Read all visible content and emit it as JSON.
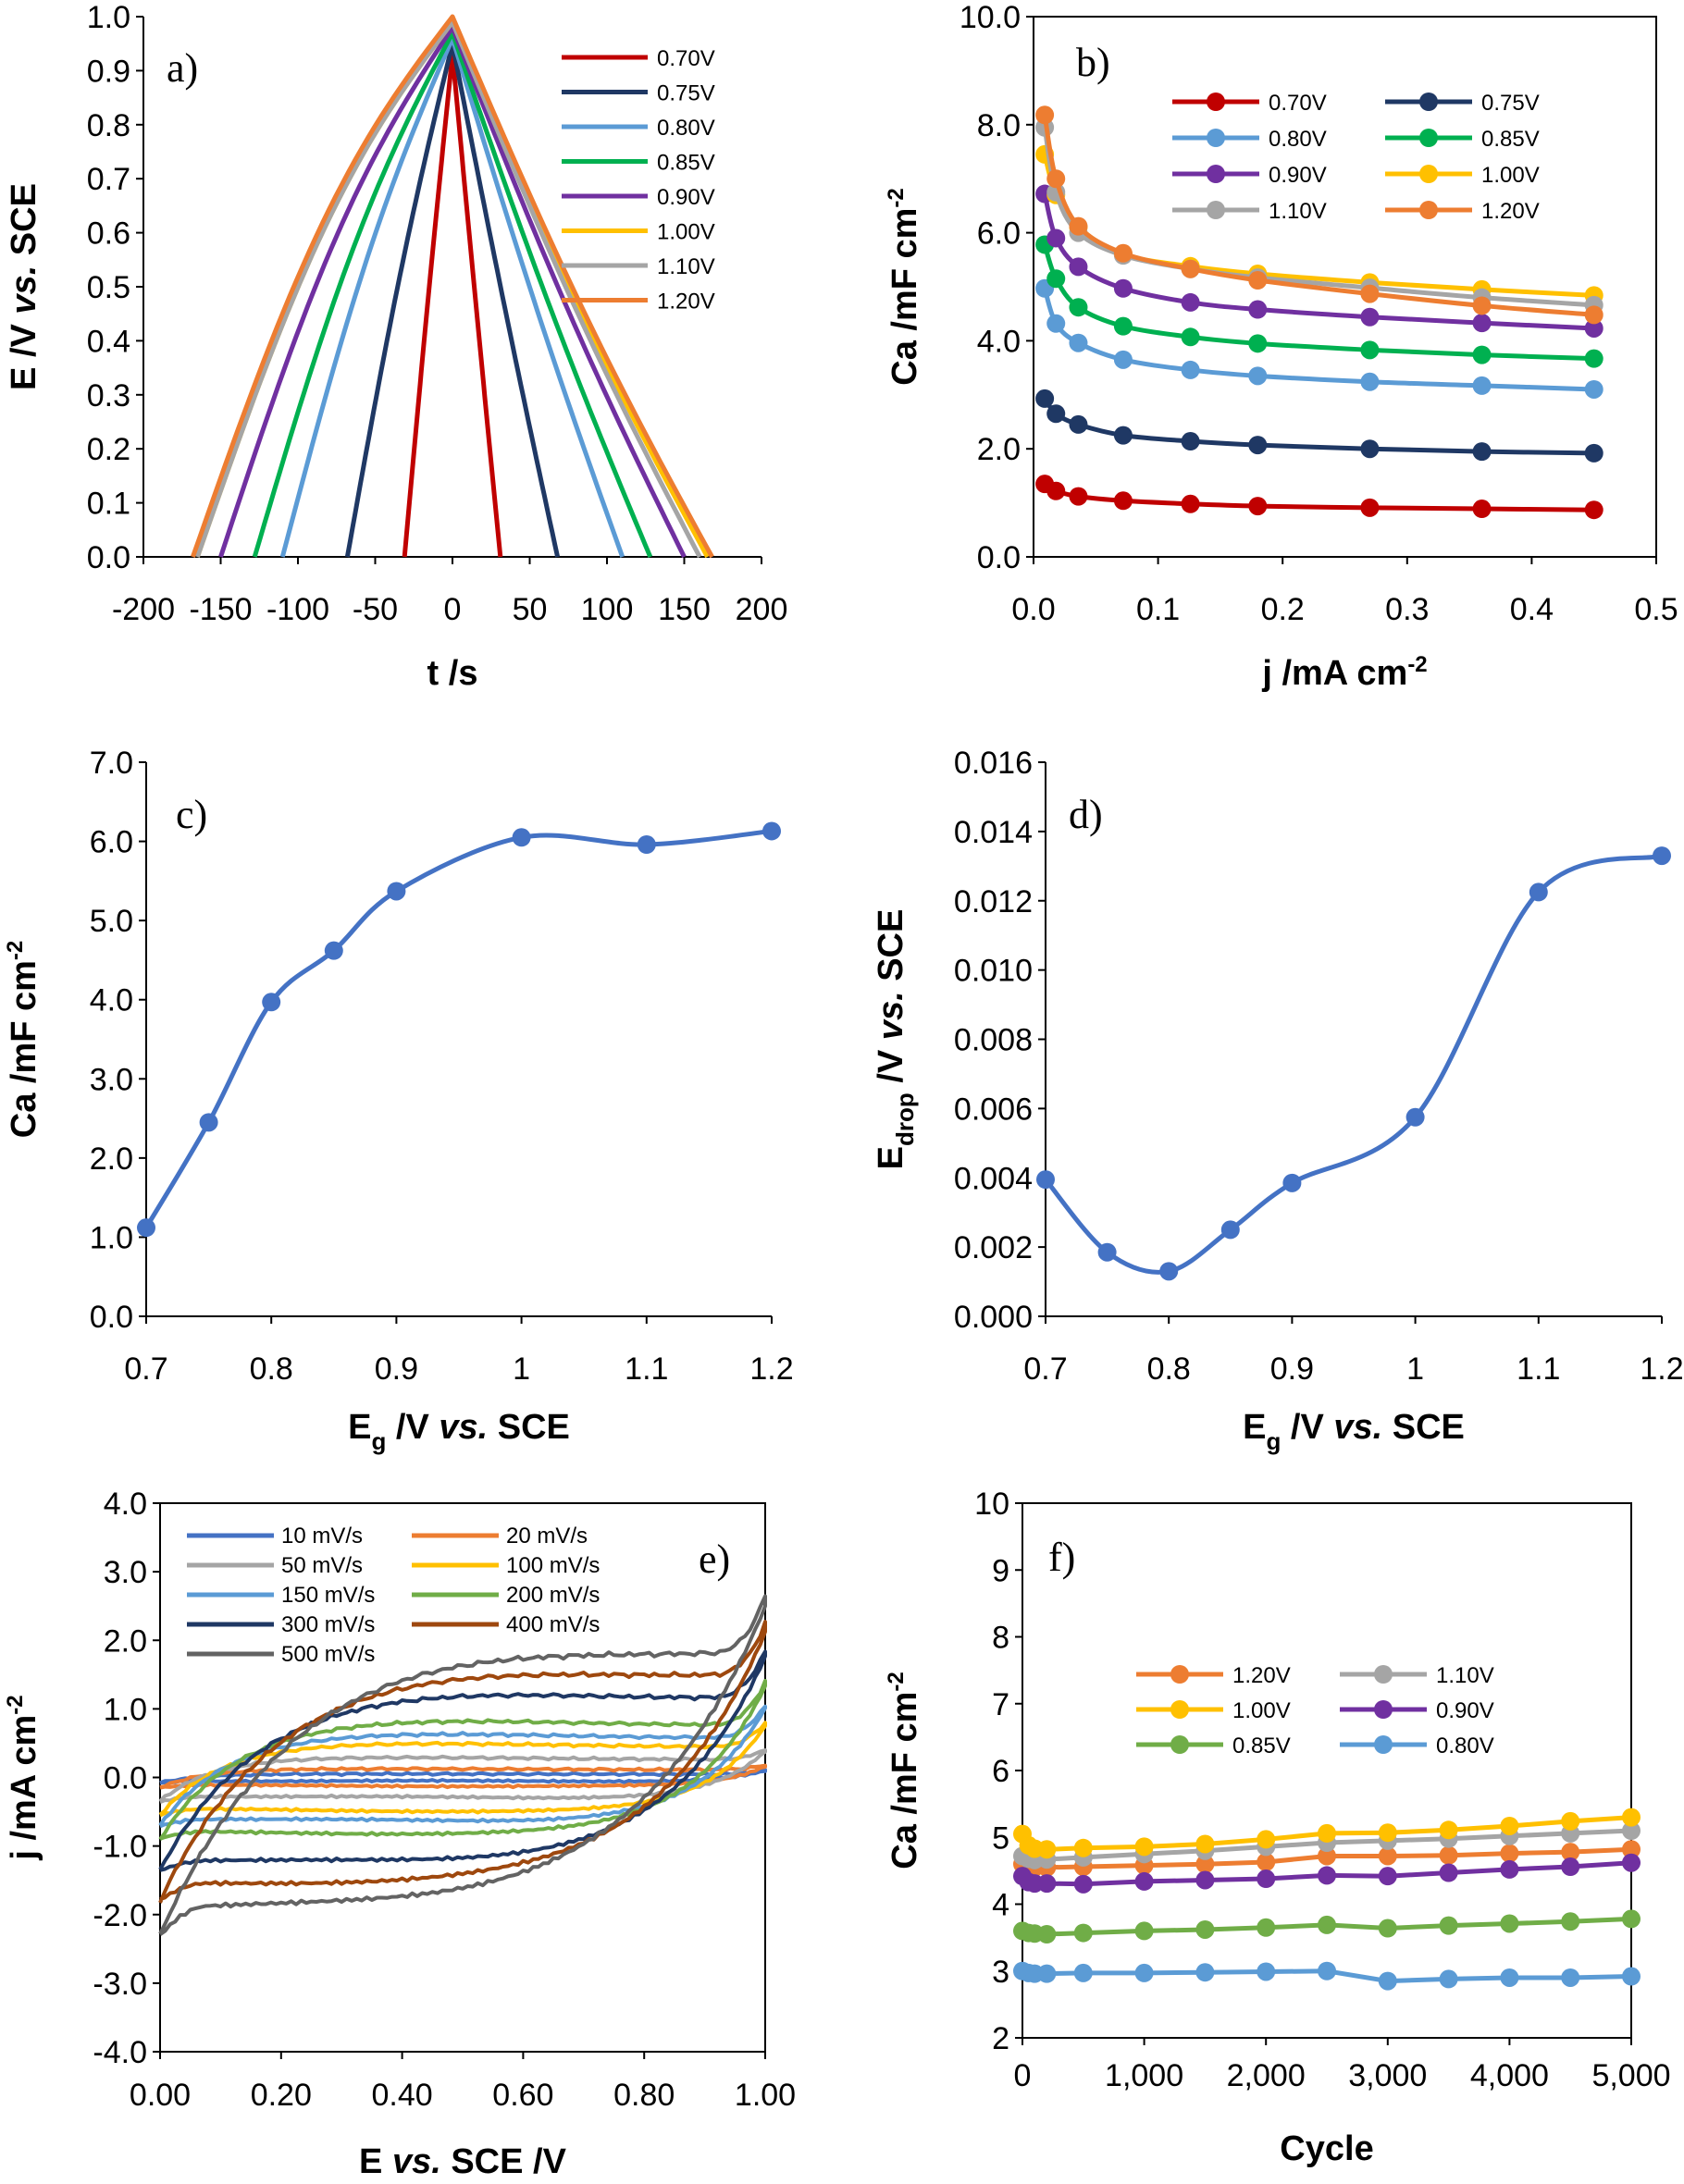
{
  "chart_data": [
    {
      "id": "a",
      "type": "line",
      "panel_label": "a)",
      "xlabel": "t /s",
      "ylabel_parts": [
        "E /V ",
        "vs.",
        " SCE"
      ],
      "xlim": [
        -200,
        200
      ],
      "ylim": [
        0,
        1.0
      ],
      "xticks": [
        "-200",
        "-150",
        "-100",
        "-50",
        "0",
        "50",
        "100",
        "150",
        "200"
      ],
      "yticks": [
        "0.0",
        "0.1",
        "0.2",
        "0.3",
        "0.4",
        "0.5",
        "0.6",
        "0.7",
        "0.8",
        "0.9",
        "1.0"
      ],
      "legend_position": "top-right",
      "series": [
        {
          "name": "0.70V",
          "color": "#c00000",
          "t0": -31,
          "t1": 31,
          "vmax": 0.93
        },
        {
          "name": "0.75V",
          "color": "#1f3864",
          "t0": -68,
          "t1": 68,
          "vmax": 0.95
        },
        {
          "name": "0.80V",
          "color": "#5b9bd5",
          "t0": -110,
          "t1": 110,
          "vmax": 0.96
        },
        {
          "name": "0.85V",
          "color": "#00b050",
          "t0": -128,
          "t1": 128,
          "vmax": 0.97
        },
        {
          "name": "0.90V",
          "color": "#7030a0",
          "t0": -150,
          "t1": 150,
          "vmax": 0.98
        },
        {
          "name": "1.00V",
          "color": "#ffc000",
          "t0": -165,
          "t1": 165,
          "vmax": 0.99
        },
        {
          "name": "1.10V",
          "color": "#a5a5a5",
          "t0": -165,
          "t1": 160,
          "vmax": 0.99
        },
        {
          "name": "1.20V",
          "color": "#ed7d31",
          "t0": -168,
          "t1": 168,
          "vmax": 1.0
        }
      ]
    },
    {
      "id": "b",
      "type": "line",
      "panel_label": "b)",
      "xlabel_parts": [
        "j /mA cm",
        "-2"
      ],
      "ylabel_parts": [
        "Ca /mF cm",
        "-2"
      ],
      "xlim": [
        0,
        0.5
      ],
      "ylim": [
        0,
        10
      ],
      "xticks": [
        "0.0",
        "0.1",
        "0.2",
        "0.3",
        "0.4",
        "0.5"
      ],
      "yticks": [
        "0.0",
        "2.0",
        "4.0",
        "6.0",
        "8.0",
        "10.0"
      ],
      "legend_position": "top-right",
      "x": [
        0.009,
        0.018,
        0.036,
        0.072,
        0.126,
        0.18,
        0.27,
        0.36,
        0.45
      ],
      "series": [
        {
          "name": "0.70V",
          "color": "#c00000",
          "values": [
            1.35,
            1.22,
            1.12,
            1.04,
            0.98,
            0.94,
            0.91,
            0.89,
            0.87
          ]
        },
        {
          "name": "0.75V",
          "color": "#1f3864",
          "values": [
            2.93,
            2.65,
            2.45,
            2.25,
            2.14,
            2.07,
            2.0,
            1.95,
            1.92
          ]
        },
        {
          "name": "0.80V",
          "color": "#5b9bd5",
          "values": [
            4.97,
            4.32,
            3.96,
            3.65,
            3.46,
            3.35,
            3.24,
            3.17,
            3.1
          ]
        },
        {
          "name": "0.85V",
          "color": "#00b050",
          "values": [
            5.78,
            5.15,
            4.62,
            4.27,
            4.07,
            3.95,
            3.83,
            3.74,
            3.67
          ]
        },
        {
          "name": "0.90V",
          "color": "#7030a0",
          "values": [
            6.72,
            5.9,
            5.37,
            4.97,
            4.71,
            4.58,
            4.44,
            4.33,
            4.23
          ]
        },
        {
          "name": "1.00V",
          "color": "#ffc000",
          "values": [
            7.45,
            6.7,
            6.1,
            5.6,
            5.38,
            5.24,
            5.08,
            4.95,
            4.84
          ]
        },
        {
          "name": "1.10V",
          "color": "#a5a5a5",
          "values": [
            7.95,
            6.75,
            6.0,
            5.58,
            5.33,
            5.17,
            4.98,
            4.8,
            4.66
          ]
        },
        {
          "name": "1.20V",
          "color": "#ed7d31",
          "values": [
            8.18,
            7.0,
            6.12,
            5.62,
            5.33,
            5.12,
            4.87,
            4.65,
            4.48
          ]
        }
      ]
    },
    {
      "id": "c",
      "type": "line",
      "panel_label": "c)",
      "xlabel_parts": [
        "E",
        "g",
        "  /V ",
        "vs.",
        " SCE"
      ],
      "ylabel_parts": [
        "Ca /mF cm",
        "-2"
      ],
      "xlim": [
        0.7,
        1.2
      ],
      "ylim": [
        0,
        7.0
      ],
      "xticks": [
        "0.7",
        "0.8",
        "0.9",
        "1",
        "1.1",
        "1.2"
      ],
      "yticks": [
        "0.0",
        "1.0",
        "2.0",
        "3.0",
        "4.0",
        "5.0",
        "6.0",
        "7.0"
      ],
      "series": [
        {
          "name": "Ca",
          "color": "#4472c4",
          "x": [
            0.7,
            0.75,
            0.8,
            0.85,
            0.9,
            1.0,
            1.1,
            1.2
          ],
          "values": [
            1.12,
            2.45,
            3.97,
            4.62,
            5.37,
            6.05,
            5.96,
            6.13
          ]
        }
      ]
    },
    {
      "id": "d",
      "type": "line",
      "panel_label": "d)",
      "xlabel_parts": [
        "E",
        "g",
        "  /V ",
        "vs.",
        " SCE"
      ],
      "ylabel_parts": [
        "E",
        "drop",
        " /V ",
        "vs.",
        " SCE"
      ],
      "xlim": [
        0.7,
        1.2
      ],
      "ylim": [
        0,
        0.016
      ],
      "xticks": [
        "0.7",
        "0.8",
        "0.9",
        "1",
        "1.1",
        "1.2"
      ],
      "yticks": [
        "0.000",
        "0.002",
        "0.004",
        "0.006",
        "0.008",
        "0.010",
        "0.012",
        "0.014",
        "0.016"
      ],
      "series": [
        {
          "name": "Edrop",
          "color": "#4472c4",
          "x": [
            0.7,
            0.75,
            0.8,
            0.85,
            0.9,
            1.0,
            1.1,
            1.2
          ],
          "values": [
            0.00395,
            0.00185,
            0.0013,
            0.0025,
            0.00385,
            0.00575,
            0.01225,
            0.0133
          ]
        }
      ]
    },
    {
      "id": "e",
      "type": "line",
      "panel_label": "e)",
      "xlabel_parts": [
        "E ",
        "vs.",
        " SCE /V"
      ],
      "ylabel_parts": [
        "j /mA cm",
        "-2"
      ],
      "xlim": [
        0,
        1.0
      ],
      "ylim": [
        -4.0,
        4.0
      ],
      "xticks": [
        "0.00",
        "0.20",
        "0.40",
        "0.60",
        "0.80",
        "1.00"
      ],
      "yticks": [
        "-4.0",
        "-3.0",
        "-2.0",
        "-1.0",
        "0.0",
        "1.0",
        "2.0",
        "3.0",
        "4.0"
      ],
      "legend_position": "top-left",
      "series": [
        {
          "name": "10 mV/s",
          "color": "#4472c4",
          "plateau": 0.05,
          "end_up": 0.1,
          "start_down": -0.08
        },
        {
          "name": "20 mV/s",
          "color": "#ed7d31",
          "plateau": 0.12,
          "end_up": 0.18,
          "start_down": -0.15
        },
        {
          "name": "50 mV/s",
          "color": "#a5a5a5",
          "plateau": 0.28,
          "end_up": 0.4,
          "start_down": -0.35
        },
        {
          "name": "100 mV/s",
          "color": "#ffc000",
          "plateau": 0.48,
          "end_up": 0.8,
          "start_down": -0.55
        },
        {
          "name": "150 mV/s",
          "color": "#5b9bd5",
          "plateau": 0.62,
          "end_up": 1.05,
          "start_down": -0.7
        },
        {
          "name": "200 mV/s",
          "color": "#70ad47",
          "plateau": 0.82,
          "end_up": 1.4,
          "start_down": -0.9
        },
        {
          "name": "300 mV/s",
          "color": "#1f3864",
          "plateau": 1.25,
          "end_up": 1.85,
          "start_down": -1.35
        },
        {
          "name": "400 mV/s",
          "color": "#9e480e",
          "plateau": 1.62,
          "end_up": 2.25,
          "start_down": -1.8
        },
        {
          "name": "500 mV/s",
          "color": "#636363",
          "plateau": 2.0,
          "end_up": 2.65,
          "start_down": -2.3
        }
      ]
    },
    {
      "id": "f",
      "type": "line",
      "panel_label": "f)",
      "xlabel": "Cycle",
      "ylabel_parts": [
        "Ca /mF cm",
        "-2"
      ],
      "xlim": [
        0,
        5000
      ],
      "ylim": [
        2,
        10
      ],
      "xticks": [
        "0",
        "1,000",
        "2,000",
        "3,000",
        "4,000",
        "5,000"
      ],
      "yticks": [
        "2",
        "3",
        "4",
        "5",
        "6",
        "7",
        "8",
        "9",
        "10"
      ],
      "legend_position": "center",
      "x": [
        0,
        50,
        100,
        200,
        500,
        1000,
        1500,
        2000,
        2500,
        3000,
        3500,
        4000,
        4500,
        5000
      ],
      "series": [
        {
          "name": "1.20V",
          "color": "#ed7d31",
          "values": [
            4.6,
            4.57,
            4.55,
            4.55,
            4.56,
            4.58,
            4.6,
            4.63,
            4.72,
            4.72,
            4.73,
            4.76,
            4.78,
            4.82
          ]
        },
        {
          "name": "1.10V",
          "color": "#a5a5a5",
          "values": [
            4.72,
            4.68,
            4.66,
            4.67,
            4.7,
            4.75,
            4.8,
            4.86,
            4.92,
            4.95,
            4.98,
            5.02,
            5.06,
            5.1
          ]
        },
        {
          "name": "1.00V",
          "color": "#ffc000",
          "values": [
            5.05,
            4.88,
            4.83,
            4.82,
            4.84,
            4.86,
            4.9,
            4.97,
            5.06,
            5.07,
            5.11,
            5.17,
            5.24,
            5.3
          ]
        },
        {
          "name": "0.90V",
          "color": "#7030a0",
          "values": [
            4.42,
            4.33,
            4.31,
            4.31,
            4.3,
            4.34,
            4.36,
            4.38,
            4.43,
            4.42,
            4.47,
            4.52,
            4.56,
            4.62
          ]
        },
        {
          "name": "0.85V",
          "color": "#70ad47",
          "values": [
            3.6,
            3.57,
            3.56,
            3.55,
            3.57,
            3.6,
            3.62,
            3.65,
            3.69,
            3.64,
            3.68,
            3.71,
            3.74,
            3.78
          ]
        },
        {
          "name": "0.80V",
          "color": "#5b9bd5",
          "values": [
            3.0,
            2.97,
            2.96,
            2.96,
            2.97,
            2.97,
            2.98,
            2.99,
            3.0,
            2.85,
            2.88,
            2.9,
            2.9,
            2.92
          ]
        }
      ]
    }
  ]
}
